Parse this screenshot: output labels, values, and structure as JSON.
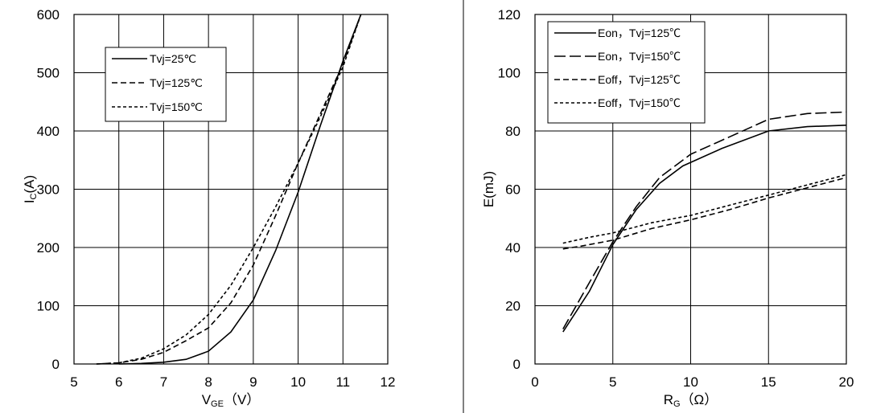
{
  "chart_data": [
    {
      "type": "line",
      "xlabel_main": "V",
      "xlabel_sub": "GE",
      "xlabel_unit": "（V）",
      "ylabel_main": "I",
      "ylabel_sub": "C",
      "ylabel_unit": "(A)",
      "xlim": [
        5,
        12
      ],
      "ylim": [
        0,
        600
      ],
      "xticks": [
        5,
        6,
        7,
        8,
        9,
        10,
        11,
        12
      ],
      "yticks": [
        0,
        100,
        200,
        300,
        400,
        500,
        600
      ],
      "grid": true,
      "legend_position": "top-left",
      "series": [
        {
          "name": "Tvj=25℃",
          "style": "solid",
          "points": [
            [
              6.0,
              0
            ],
            [
              6.5,
              1
            ],
            [
              7.0,
              3
            ],
            [
              7.5,
              8
            ],
            [
              8.0,
              22
            ],
            [
              8.5,
              55
            ],
            [
              9.0,
              110
            ],
            [
              9.5,
              195
            ],
            [
              10.0,
              295
            ],
            [
              10.5,
              410
            ],
            [
              11.0,
              520
            ],
            [
              11.4,
              600
            ]
          ]
        },
        {
          "name": "Tvj=125℃",
          "style": "dashed",
          "points": [
            [
              5.5,
              0
            ],
            [
              6.0,
              2
            ],
            [
              6.5,
              8
            ],
            [
              7.0,
              20
            ],
            [
              7.5,
              40
            ],
            [
              8.0,
              62
            ],
            [
              8.5,
              105
            ],
            [
              9.0,
              170
            ],
            [
              9.5,
              255
            ],
            [
              10.0,
              345
            ],
            [
              10.5,
              430
            ],
            [
              11.0,
              515
            ],
            [
              11.4,
              600
            ]
          ]
        },
        {
          "name": "Tvj=150℃",
          "style": "dotted",
          "points": [
            [
              5.5,
              0
            ],
            [
              6.0,
              2
            ],
            [
              6.5,
              10
            ],
            [
              7.0,
              26
            ],
            [
              7.5,
              50
            ],
            [
              8.0,
              85
            ],
            [
              8.5,
              135
            ],
            [
              9.0,
              200
            ],
            [
              9.5,
              270
            ],
            [
              10.0,
              345
            ],
            [
              10.5,
              425
            ],
            [
              11.0,
              510
            ],
            [
              11.4,
              600
            ]
          ]
        }
      ]
    },
    {
      "type": "line",
      "xlabel_main": "R",
      "xlabel_sub": "G",
      "xlabel_unit": "（Ω）",
      "ylabel_main": "E(mJ)",
      "xlim": [
        0,
        20
      ],
      "ylim": [
        0,
        120
      ],
      "xticks": [
        0,
        5,
        10,
        15,
        20
      ],
      "yticks": [
        0,
        20,
        40,
        60,
        80,
        100,
        120
      ],
      "grid": true,
      "legend_position": "top-left",
      "series": [
        {
          "name": "Eon，Tvj=125℃",
          "style": "solid",
          "points": [
            [
              1.8,
              11
            ],
            [
              3.5,
              25
            ],
            [
              5.0,
              41
            ],
            [
              6.5,
              53
            ],
            [
              8.0,
              62
            ],
            [
              9.5,
              68
            ],
            [
              12.0,
              74
            ],
            [
              15.0,
              80
            ],
            [
              17.5,
              81.5
            ],
            [
              20.0,
              82
            ]
          ]
        },
        {
          "name": "Eon，Tvj=150℃",
          "style": "longdash",
          "points": [
            [
              1.8,
              12
            ],
            [
              3.5,
              28
            ],
            [
              5.0,
              42
            ],
            [
              6.5,
              54
            ],
            [
              8.0,
              64
            ],
            [
              10.0,
              72
            ],
            [
              12.5,
              78
            ],
            [
              15.0,
              84
            ],
            [
              17.5,
              86
            ],
            [
              20.0,
              86.5
            ]
          ]
        },
        {
          "name": "Eoff，Tvj=125℃",
          "style": "dashed",
          "points": [
            [
              1.8,
              39.5
            ],
            [
              3.0,
              40.5
            ],
            [
              5.0,
              42.5
            ],
            [
              7.5,
              46.5
            ],
            [
              10.0,
              49.5
            ],
            [
              12.5,
              53
            ],
            [
              15.0,
              57
            ],
            [
              17.5,
              60.5
            ],
            [
              20.0,
              64
            ]
          ]
        },
        {
          "name": "Eoff，Tvj=150℃",
          "style": "dotted",
          "points": [
            [
              1.8,
              41.5
            ],
            [
              3.5,
              43.5
            ],
            [
              5.0,
              45
            ],
            [
              7.5,
              48.5
            ],
            [
              10.0,
              51
            ],
            [
              12.5,
              54.5
            ],
            [
              15.0,
              58
            ],
            [
              17.5,
              61.5
            ],
            [
              20.0,
              65
            ]
          ]
        }
      ]
    }
  ]
}
